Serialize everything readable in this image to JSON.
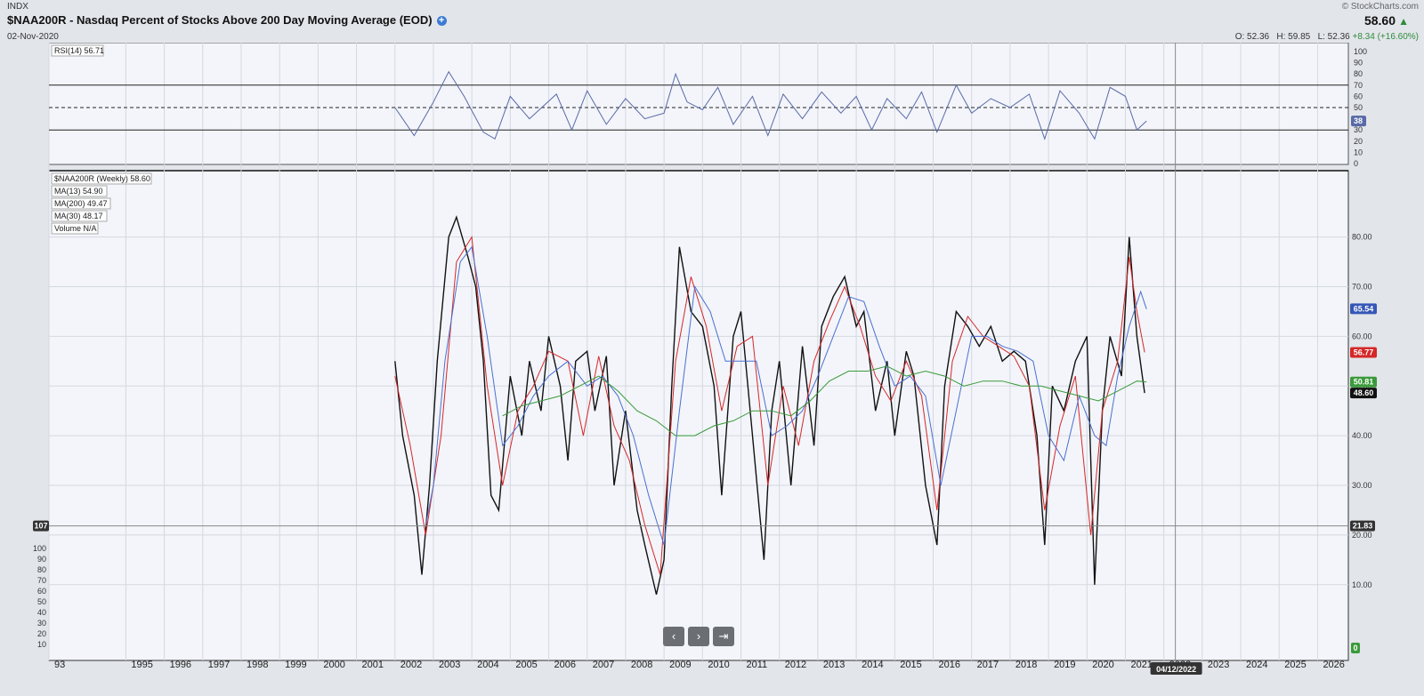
{
  "header": {
    "symbol": "INDX",
    "title": "$NAA200R - Nasdaq Percent of Stocks Above 200 Day Moving Average (EOD)",
    "date": "02-Nov-2020",
    "watermark": "© StockCharts.com",
    "price": "58.60",
    "ohlc": {
      "open": "O: 52.36",
      "high": "H: 59.85",
      "low": "L: 52.36",
      "change": "+8.34 (+16.60%)"
    }
  },
  "navigation": {
    "prev": "‹",
    "next": "›",
    "end": "⇥"
  },
  "chart_data": [
    {
      "type": "line",
      "title": "RSI(14)",
      "legend_value": "56.71",
      "ylim": [
        0,
        100
      ],
      "yticks": [
        100,
        90,
        80,
        70,
        60,
        50,
        40,
        30,
        20,
        10,
        0
      ],
      "reference_lines": [
        70,
        50,
        30
      ],
      "last_value_badge": "38",
      "x": [
        2002.0,
        2002.5,
        2003.0,
        2003.4,
        2003.8,
        2004.3,
        2004.6,
        2005.0,
        2005.5,
        2006.2,
        2006.6,
        2007.0,
        2007.5,
        2008.0,
        2008.5,
        2009.0,
        2009.3,
        2009.6,
        2010.0,
        2010.4,
        2010.8,
        2011.3,
        2011.7,
        2012.1,
        2012.6,
        2013.1,
        2013.6,
        2014.0,
        2014.4,
        2014.8,
        2015.3,
        2015.7,
        2016.1,
        2016.6,
        2017.0,
        2017.5,
        2018.0,
        2018.5,
        2018.9,
        2019.3,
        2019.8,
        2020.2,
        2020.6,
        2021.0,
        2021.3,
        2021.55
      ],
      "y": [
        50,
        25,
        55,
        82,
        60,
        28,
        22,
        60,
        40,
        62,
        30,
        65,
        35,
        58,
        40,
        45,
        80,
        55,
        48,
        68,
        35,
        60,
        25,
        62,
        40,
        64,
        45,
        60,
        30,
        58,
        40,
        64,
        28,
        70,
        45,
        58,
        50,
        62,
        22,
        65,
        45,
        22,
        68,
        60,
        30,
        38
      ]
    },
    {
      "type": "line",
      "title": "$NAA200R (Weekly)",
      "legend_value": "58.60",
      "ylim": [
        -4,
        93
      ],
      "yticks": [
        "80.00",
        "70.00",
        "60.00",
        "50.00",
        "40.00",
        "30.00",
        "20.00",
        "10.00"
      ],
      "xlabels": [
        "93",
        "1995",
        "1996",
        "1997",
        "1998",
        "1999",
        "2000",
        "2001",
        "2002",
        "2003",
        "2004",
        "2005",
        "2006",
        "2007",
        "2008",
        "2009",
        "2010",
        "2011",
        "2012",
        "2013",
        "2014",
        "2015",
        "2016",
        "2017",
        "2018",
        "2019",
        "2020",
        "2021",
        "2022",
        "2023",
        "2024",
        "2025",
        "2026"
      ],
      "crosshair": {
        "date": "04/12/2022",
        "value": "21.83",
        "volume_label": "107"
      },
      "series": [
        {
          "name": "$NAA200R (Weekly)",
          "color": "#111111",
          "badge": "48.60",
          "x": [
            2002.0,
            2002.2,
            2002.5,
            2002.7,
            2002.9,
            2003.1,
            2003.4,
            2003.6,
            2003.9,
            2004.1,
            2004.3,
            2004.5,
            2004.7,
            2005.0,
            2005.3,
            2005.5,
            2005.8,
            2006.0,
            2006.3,
            2006.5,
            2006.7,
            2007.0,
            2007.2,
            2007.5,
            2007.7,
            2008.0,
            2008.3,
            2008.5,
            2008.8,
            2009.0,
            2009.2,
            2009.4,
            2009.7,
            2010.0,
            2010.3,
            2010.5,
            2010.8,
            2011.0,
            2011.3,
            2011.6,
            2011.8,
            2012.0,
            2012.3,
            2012.6,
            2012.9,
            2013.1,
            2013.4,
            2013.7,
            2014.0,
            2014.2,
            2014.5,
            2014.8,
            2015.0,
            2015.3,
            2015.5,
            2015.8,
            2016.1,
            2016.3,
            2016.6,
            2016.9,
            2017.2,
            2017.5,
            2017.8,
            2018.1,
            2018.4,
            2018.7,
            2018.9,
            2019.1,
            2019.4,
            2019.7,
            2020.0,
            2020.2,
            2020.4,
            2020.6,
            2020.9,
            2021.1,
            2021.3,
            2021.5
          ],
          "y": [
            55,
            40,
            28,
            12,
            30,
            55,
            80,
            84,
            76,
            70,
            55,
            28,
            25,
            52,
            40,
            55,
            45,
            60,
            50,
            35,
            55,
            57,
            45,
            56,
            30,
            45,
            25,
            18,
            8,
            15,
            50,
            78,
            65,
            62,
            50,
            28,
            60,
            65,
            40,
            15,
            45,
            55,
            30,
            58,
            38,
            62,
            68,
            72,
            62,
            65,
            45,
            55,
            40,
            57,
            52,
            30,
            18,
            50,
            65,
            62,
            58,
            62,
            55,
            57,
            55,
            40,
            18,
            50,
            45,
            55,
            60,
            10,
            45,
            60,
            52,
            80,
            60,
            48.6
          ]
        },
        {
          "name": "MA(13)",
          "color": "#d62728",
          "legend_value": "54.90",
          "badge": "56.77",
          "x": [
            2002.0,
            2002.4,
            2002.8,
            2003.2,
            2003.6,
            2004.0,
            2004.4,
            2004.8,
            2005.2,
            2005.6,
            2006.0,
            2006.5,
            2006.9,
            2007.3,
            2007.7,
            2008.1,
            2008.5,
            2008.9,
            2009.3,
            2009.7,
            2010.1,
            2010.5,
            2010.9,
            2011.3,
            2011.7,
            2012.1,
            2012.5,
            2012.9,
            2013.3,
            2013.7,
            2014.1,
            2014.5,
            2014.9,
            2015.3,
            2015.7,
            2016.1,
            2016.5,
            2016.9,
            2017.3,
            2017.7,
            2018.1,
            2018.5,
            2018.9,
            2019.3,
            2019.7,
            2020.1,
            2020.4,
            2020.8,
            2021.1,
            2021.3,
            2021.5
          ],
          "y": [
            52,
            38,
            20,
            40,
            75,
            80,
            50,
            30,
            45,
            50,
            57,
            55,
            40,
            56,
            42,
            35,
            22,
            12,
            55,
            72,
            62,
            45,
            58,
            60,
            30,
            50,
            38,
            55,
            63,
            70,
            62,
            52,
            47,
            55,
            48,
            25,
            55,
            64,
            60,
            58,
            56,
            50,
            25,
            42,
            52,
            20,
            45,
            55,
            76,
            65,
            56.77
          ]
        },
        {
          "name": "MA(30)",
          "color": "#4a6fd0",
          "legend_value": "48.17",
          "badge": "65.54",
          "x": [
            2002.8,
            2003.0,
            2003.3,
            2003.7,
            2004.0,
            2004.4,
            2004.8,
            2005.2,
            2005.6,
            2006.0,
            2006.5,
            2007.0,
            2007.4,
            2007.8,
            2008.2,
            2008.6,
            2009.0,
            2009.4,
            2009.8,
            2010.2,
            2010.6,
            2011.0,
            2011.4,
            2011.8,
            2012.2,
            2012.6,
            2013.0,
            2013.4,
            2013.8,
            2014.2,
            2014.6,
            2015.0,
            2015.4,
            2015.8,
            2016.2,
            2016.6,
            2017.0,
            2017.4,
            2017.8,
            2018.2,
            2018.6,
            2019.0,
            2019.4,
            2019.8,
            2020.2,
            2020.5,
            2020.8,
            2021.1,
            2021.4,
            2021.55
          ],
          "y": [
            22,
            30,
            55,
            75,
            78,
            60,
            38,
            42,
            48,
            52,
            55,
            50,
            52,
            48,
            40,
            28,
            18,
            45,
            70,
            65,
            55,
            55,
            55,
            40,
            42,
            45,
            52,
            60,
            68,
            67,
            58,
            50,
            52,
            48,
            30,
            45,
            60,
            60,
            58,
            57,
            55,
            40,
            35,
            48,
            40,
            38,
            52,
            62,
            69,
            65.5
          ]
        },
        {
          "name": "MA(200)",
          "color": "#3a9a3a",
          "legend_value": "49.47",
          "badge": "50.81",
          "x": [
            2004.8,
            2005.3,
            2005.8,
            2006.3,
            2006.8,
            2007.3,
            2007.8,
            2008.3,
            2008.8,
            2009.3,
            2009.8,
            2010.3,
            2010.8,
            2011.3,
            2011.8,
            2012.3,
            2012.8,
            2013.3,
            2013.8,
            2014.3,
            2014.8,
            2015.3,
            2015.8,
            2016.3,
            2016.8,
            2017.3,
            2017.8,
            2018.3,
            2018.8,
            2019.3,
            2019.8,
            2020.3,
            2020.8,
            2021.3,
            2021.55
          ],
          "y": [
            44,
            46,
            47,
            48,
            50,
            52,
            49,
            45,
            43,
            40,
            40,
            42,
            43,
            45,
            45,
            44,
            47,
            51,
            53,
            53,
            54,
            52,
            53,
            52,
            50,
            51,
            51,
            50,
            50,
            49,
            48,
            47,
            49,
            51,
            50.8
          ]
        }
      ],
      "legend_extra": {
        "name": "Volume",
        "value": "N/A"
      },
      "volume_axis": {
        "ticks": [
          100,
          90,
          80,
          70,
          60,
          50,
          40,
          30,
          20,
          10
        ],
        "badge": "0"
      }
    }
  ]
}
